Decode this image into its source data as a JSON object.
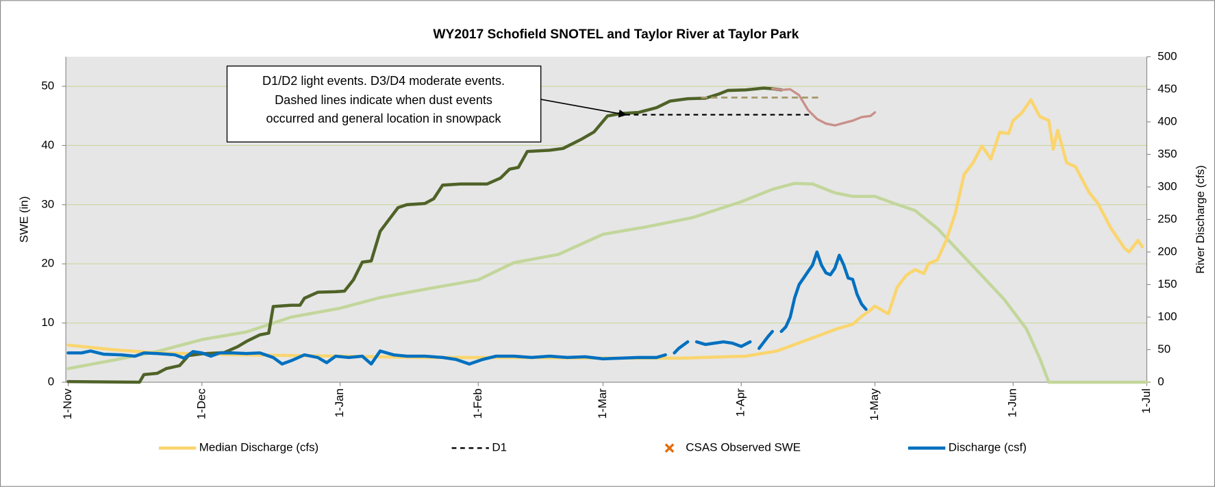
{
  "chart_data": {
    "type": "line",
    "title": "WY2017 Schofield SNOTEL and Taylor River at Taylor Park",
    "y_label": "SWE (in)",
    "y2_label": "River Discharge (cfs)",
    "annotation": [
      "D1/D2 light events.  D3/D4 moderate events.",
      "Dashed lines indicate when dust events",
      "occurred and general location in snowpack"
    ],
    "xlim": [
      0,
      242
    ],
    "xticks": [
      {
        "value": 0,
        "label": "1-Nov"
      },
      {
        "value": 30,
        "label": "1-Dec"
      },
      {
        "value": 61,
        "label": "1-Jan"
      },
      {
        "value": 92,
        "label": "1-Feb"
      },
      {
        "value": 120,
        "label": "1-Mar"
      },
      {
        "value": 151,
        "label": "1-Apr"
      },
      {
        "value": 181,
        "label": "1-May"
      },
      {
        "value": 212,
        "label": "1-Jun"
      },
      {
        "value": 242,
        "label": "1-Jul"
      }
    ],
    "ylim": [
      0,
      55
    ],
    "yticks": [
      0,
      10,
      20,
      30,
      40,
      50
    ],
    "y2lim": [
      0,
      500
    ],
    "y2ticks": [
      0,
      50,
      100,
      150,
      200,
      250,
      300,
      350,
      400,
      450,
      500
    ],
    "grid": true,
    "legend": "bottom",
    "series": [
      {
        "color": "#c3d69b",
        "width": 4,
        "x": [
          0,
          10,
          20,
          30,
          40,
          50,
          61,
          70,
          80,
          92,
          100,
          110,
          120,
          130,
          140,
          151,
          158,
          163,
          167,
          172,
          176,
          181,
          185,
          190,
          195,
          200,
          205,
          210,
          215,
          218,
          220,
          242
        ],
        "values": [
          2.3,
          3.7,
          5.2,
          7.2,
          8.5,
          11,
          12.5,
          14.3,
          15.7,
          17.3,
          20.2,
          21.6,
          25,
          26.3,
          27.8,
          30.5,
          32.6,
          33.6,
          33.5,
          32,
          31.4,
          31.4,
          30.3,
          29,
          26,
          22,
          18,
          14,
          9,
          4,
          0,
          0
        ]
      },
      {
        "name": "Median Discharge (cfs)",
        "color": "#fad56e",
        "width": 4,
        "axis": "y2",
        "x": [
          0,
          10,
          20,
          40,
          61,
          80,
          100,
          120,
          138,
          152,
          159,
          165,
          169,
          172,
          176,
          178,
          180,
          181,
          184,
          186,
          188,
          190,
          192,
          193,
          195,
          197,
          199,
          201,
          203,
          205,
          207,
          209,
          211,
          212,
          214,
          216,
          218,
          220,
          221,
          222,
          224,
          226,
          229,
          231,
          234,
          237,
          238,
          240,
          241
        ],
        "values": [
          57,
          50,
          45,
          42,
          40,
          38,
          38,
          37,
          37,
          40,
          48,
          63,
          73,
          81,
          89,
          101,
          111,
          117,
          105,
          146,
          164,
          173,
          167,
          182,
          188,
          218,
          259,
          319,
          337,
          363,
          343,
          384,
          382,
          402,
          414,
          434,
          408,
          402,
          358,
          387,
          337,
          331,
          292,
          275,
          236,
          206,
          200,
          218,
          208
        ]
      },
      {
        "color": "#4f6228",
        "width": 4,
        "x": [
          0,
          16,
          17,
          20,
          22,
          25,
          27,
          30,
          35,
          38,
          40,
          43,
          45,
          46,
          50,
          52,
          53,
          56,
          60,
          62,
          64,
          66,
          68,
          70,
          72,
          74,
          76,
          80,
          82,
          84,
          88,
          94,
          97,
          99,
          101,
          103,
          108,
          111,
          115,
          118,
          121,
          124,
          128,
          132,
          135,
          139,
          143,
          146,
          148,
          152,
          156,
          158,
          160
        ],
        "values": [
          0.1,
          0,
          1.3,
          1.5,
          2.3,
          2.8,
          4.5,
          4.8,
          5,
          6,
          6.9,
          8,
          8.3,
          12.8,
          13,
          13,
          14.2,
          15.2,
          15.3,
          15.4,
          17.3,
          20.3,
          20.5,
          25.5,
          27.5,
          29.5,
          30,
          30.2,
          31,
          33.3,
          33.5,
          33.5,
          34.5,
          36,
          36.3,
          39,
          39.2,
          39.5,
          41,
          42.3,
          45,
          45.4,
          45.6,
          46.4,
          47.5,
          47.9,
          48,
          48.7,
          49.3,
          49.4,
          49.7,
          49.6,
          49.4
        ]
      },
      {
        "color": "#c9908a",
        "width": 3,
        "x": [
          158,
          160,
          162,
          164,
          166,
          168,
          170,
          172,
          174,
          176,
          178,
          180,
          181
        ],
        "values": [
          49.6,
          49.4,
          49.5,
          48.5,
          46,
          44.5,
          43.7,
          43.4,
          43.8,
          44.2,
          44.8,
          45,
          45.6
        ]
      },
      {
        "color": "#a69b6c",
        "width": 2.5,
        "dash": "8 5",
        "x": [
          142,
          169
        ],
        "values": [
          48.1,
          48.1
        ]
      },
      {
        "name": "D1",
        "color": "#000000",
        "width": 2,
        "dash": "6 5",
        "x": [
          125,
          167
        ],
        "values": [
          45.2,
          45.2
        ]
      },
      {
        "name": "CSAS Observed SWE",
        "color": "#e46c0a",
        "marker": "x",
        "x": [],
        "values": []
      },
      {
        "name": "Discharge (csf)",
        "color": "#0070c0",
        "width": 4,
        "axis": "y2",
        "x": [
          0,
          3,
          5,
          8,
          12,
          15,
          17,
          20,
          24,
          26,
          28,
          30,
          32,
          34,
          37,
          40,
          43,
          46,
          48,
          50,
          53,
          56,
          58,
          60,
          63,
          66,
          68,
          70,
          73,
          76,
          80,
          84,
          87,
          90,
          93,
          96,
          100,
          104,
          108,
          112,
          116,
          120,
          124,
          128,
          132,
          134,
          135,
          136,
          137,
          139,
          140,
          141,
          143,
          145,
          147,
          149,
          151,
          153,
          154,
          155,
          157,
          158,
          159,
          160,
          161,
          162,
          163,
          164,
          165,
          166,
          167,
          168,
          169,
          170,
          171,
          172,
          173,
          174,
          175,
          176,
          177,
          178,
          179
        ],
        "values": [
          45,
          45,
          48,
          43,
          42,
          40,
          45,
          44,
          42,
          37,
          47,
          45,
          40,
          45,
          45,
          44,
          45,
          38,
          28,
          33,
          42,
          38,
          30,
          40,
          38,
          40,
          28,
          48,
          42,
          40,
          40,
          38,
          35,
          28,
          35,
          40,
          40,
          38,
          40,
          38,
          39,
          36,
          37,
          38,
          38,
          42,
          null,
          45,
          52,
          62,
          null,
          62,
          58,
          60,
          62,
          60,
          55,
          62,
          null,
          52,
          70,
          78,
          null,
          78,
          85,
          100,
          130,
          150,
          160,
          170,
          180,
          200,
          180,
          168,
          165,
          175,
          195,
          180,
          160,
          158,
          135,
          120,
          112
        ]
      }
    ]
  }
}
